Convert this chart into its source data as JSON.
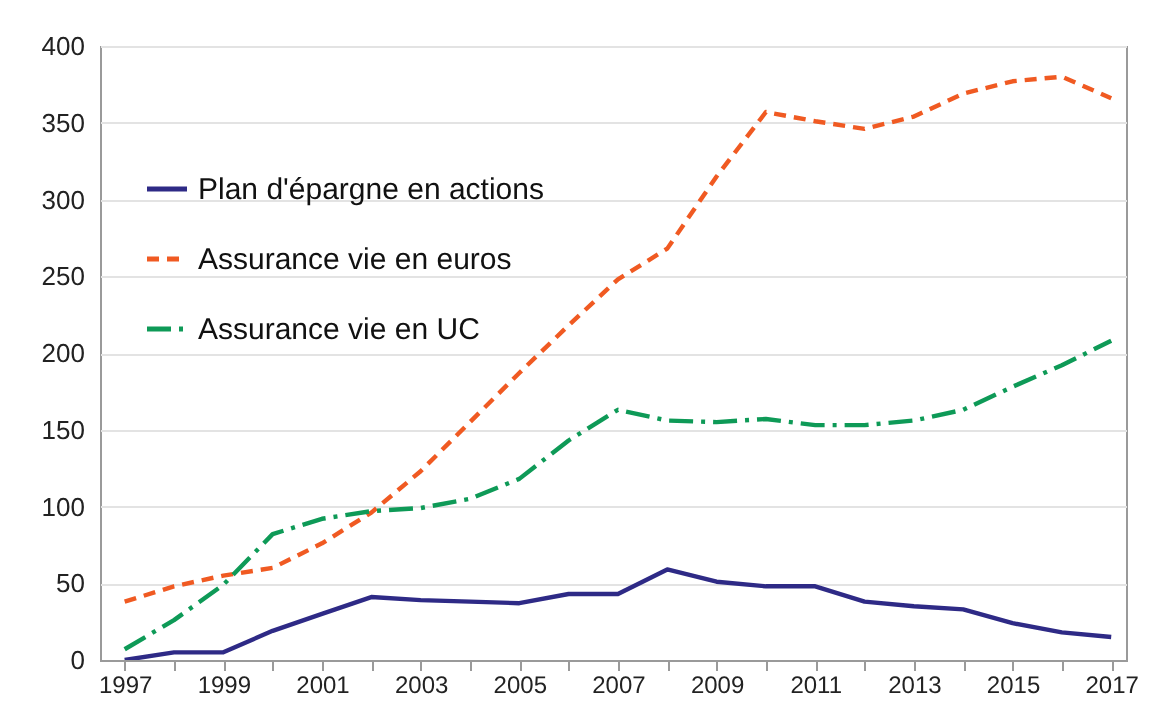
{
  "chart_data": {
    "type": "line",
    "x": [
      1997,
      1998,
      1999,
      2000,
      2001,
      2002,
      2003,
      2004,
      2005,
      2006,
      2007,
      2008,
      2009,
      2010,
      2011,
      2012,
      2013,
      2014,
      2015,
      2016,
      2017
    ],
    "series": [
      {
        "name": "Plan d'épargne en actions",
        "color": "#2e2a86",
        "line_style": "solid",
        "values": [
          0,
          5,
          5,
          19,
          30,
          41,
          39,
          38,
          37,
          43,
          43,
          59,
          51,
          48,
          48,
          38,
          35,
          33,
          24,
          18,
          15
        ]
      },
      {
        "name": "Assurance vie en euros",
        "color": "#f05a22",
        "line_style": "dashed",
        "values": [
          38,
          48,
          55,
          60,
          76,
          96,
          123,
          155,
          187,
          218,
          248,
          268,
          315,
          357,
          351,
          346,
          354,
          369,
          377,
          380,
          366
        ]
      },
      {
        "name": "Assurance vie en UC",
        "color": "#0e9a57",
        "line_style": "dashdot",
        "values": [
          7,
          26,
          49,
          82,
          92,
          97,
          99,
          105,
          118,
          143,
          163,
          156,
          155,
          157,
          153,
          153,
          156,
          163,
          178,
          192,
          208
        ]
      }
    ],
    "xlim": [
      1996.5,
      2017.3
    ],
    "xticks": [
      1997,
      {
        "value": 1998,
        "label": null
      },
      1999,
      {
        "value": 2000,
        "label": null
      },
      2001,
      {
        "value": 2002,
        "label": null
      },
      2003,
      {
        "value": 2004,
        "label": null
      },
      2005,
      {
        "value": 2006,
        "label": null
      },
      2007,
      {
        "value": 2008,
        "label": null
      },
      2009,
      {
        "value": 2010,
        "label": null
      },
      2011,
      {
        "value": 2012,
        "label": null
      },
      2013,
      {
        "value": 2014,
        "label": null
      },
      2015,
      {
        "value": 2016,
        "label": null
      },
      2017
    ],
    "ylim": [
      0,
      400
    ],
    "yticks": [
      0,
      50,
      100,
      150,
      200,
      250,
      300,
      350,
      400
    ],
    "grid": "y",
    "legend": "top left",
    "marker": "none"
  }
}
